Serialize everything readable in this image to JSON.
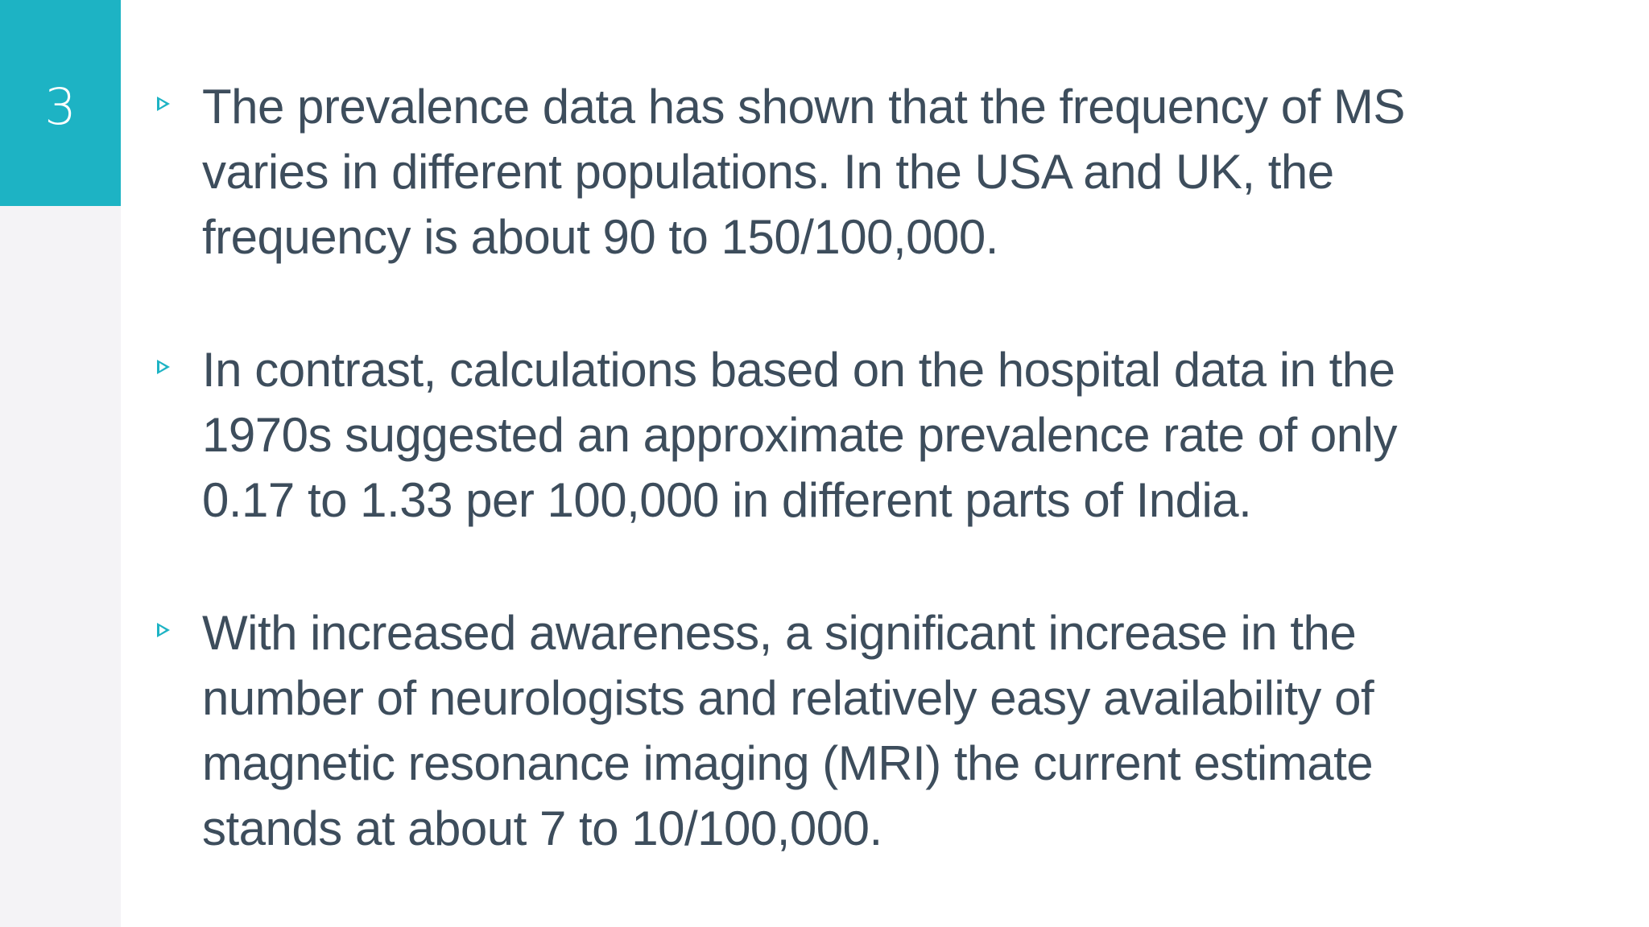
{
  "slide": {
    "number": "3",
    "accent_color": "#1db3c4",
    "text_color": "#3d4d5c"
  },
  "bullets": [
    {
      "icon": "triangle-bullet-icon",
      "text": "The prevalence data has shown that the frequency of MS\nvaries in different populations. In the USA and UK, the\nfrequency is about 90 to 150/100,000."
    },
    {
      "icon": "triangle-bullet-icon",
      "text": " In contrast, calculations based on the hospital data in the\n1970s suggested an approximate prevalence rate of only\n0.17 to 1.33 per 100,000 in different parts of India."
    },
    {
      "icon": "triangle-bullet-icon",
      "text": " With increased awareness, a significant increase in the\nnumber of neurologists and relatively easy availability of\nmagnetic resonance imaging (MRI) the current estimate\nstands at about 7 to 10/100,000."
    }
  ]
}
